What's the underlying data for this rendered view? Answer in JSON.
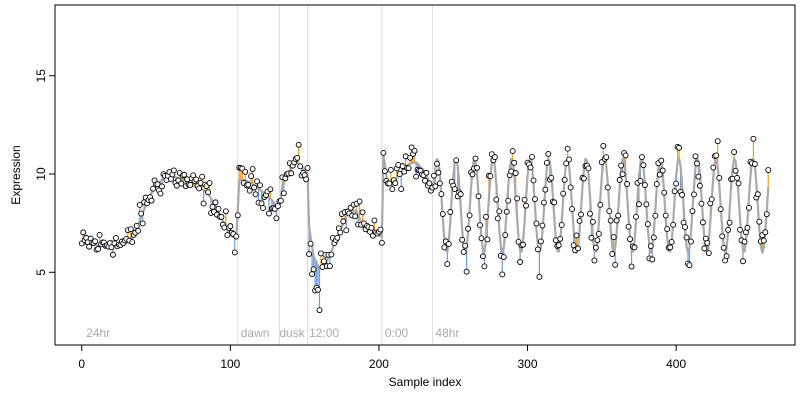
{
  "chart_data": {
    "type": "scatter",
    "xlabel": "Sample index",
    "ylabel": "Expression",
    "xlim": [
      -18,
      480
    ],
    "ylim": [
      1.3,
      18.6
    ],
    "x_ticks": [
      0,
      100,
      200,
      300,
      400
    ],
    "y_ticks": [
      5,
      10,
      15
    ],
    "grid": false,
    "boundaries": [
      105,
      133,
      152,
      202,
      236
    ],
    "section_labels": [
      {
        "x": 3,
        "text": "24hr"
      },
      {
        "x": 107,
        "text": "dawn"
      },
      {
        "x": 133,
        "text": "dusk"
      },
      {
        "x": 153,
        "text": "12:00"
      },
      {
        "x": 204,
        "text": "0:00"
      },
      {
        "x": 238,
        "text": "48hr"
      }
    ],
    "colors": {
      "fit_line": "#a9a9a9",
      "residual_below": "#6f9be0",
      "residual_above": "#f0a020",
      "point_fill": "#ffffff",
      "point_stroke": "#000000",
      "boundary": "#dddddd"
    },
    "anchors": [
      [
        0,
        6.4
      ],
      [
        5,
        6.5
      ],
      [
        10,
        6.4
      ],
      [
        15,
        6.4
      ],
      [
        20,
        6.6
      ],
      [
        25,
        6.4
      ],
      [
        30,
        6.5
      ],
      [
        35,
        6.9
      ],
      [
        40,
        7.8
      ],
      [
        45,
        8.8
      ],
      [
        50,
        9.4
      ],
      [
        55,
        9.8
      ],
      [
        60,
        9.9
      ],
      [
        65,
        9.8
      ],
      [
        70,
        9.6
      ],
      [
        75,
        9.4
      ],
      [
        80,
        9.3
      ],
      [
        85,
        9.0
      ],
      [
        90,
        8.4
      ],
      [
        95,
        7.6
      ],
      [
        100,
        6.9
      ],
      [
        104,
        6.7
      ],
      [
        106,
        9.7
      ],
      [
        110,
        9.7
      ],
      [
        115,
        9.5
      ],
      [
        120,
        9.2
      ],
      [
        125,
        8.9
      ],
      [
        130,
        8.5
      ],
      [
        133,
        8.3
      ],
      [
        135,
        9.4
      ],
      [
        140,
        10.2
      ],
      [
        145,
        10.6
      ],
      [
        150,
        10.2
      ],
      [
        152,
        9.9
      ],
      [
        153,
        7.3
      ],
      [
        156,
        5.8
      ],
      [
        160,
        5.2
      ],
      [
        165,
        5.6
      ],
      [
        170,
        6.4
      ],
      [
        175,
        7.3
      ],
      [
        180,
        8.2
      ],
      [
        185,
        8.1
      ],
      [
        190,
        7.2
      ],
      [
        195,
        6.9
      ],
      [
        200,
        6.9
      ],
      [
        202,
        6.8
      ],
      [
        203,
        11.0
      ],
      [
        206,
        9.4
      ],
      [
        210,
        9.6
      ],
      [
        215,
        10.1
      ],
      [
        220,
        10.5
      ],
      [
        225,
        10.6
      ],
      [
        230,
        10.2
      ],
      [
        234,
        9.6
      ],
      [
        236,
        9.2
      ]
    ],
    "oscillation": {
      "x_start": 237,
      "x_end": 462,
      "mean": 8.4,
      "amplitude": 2.4,
      "period": 12.5
    }
  }
}
